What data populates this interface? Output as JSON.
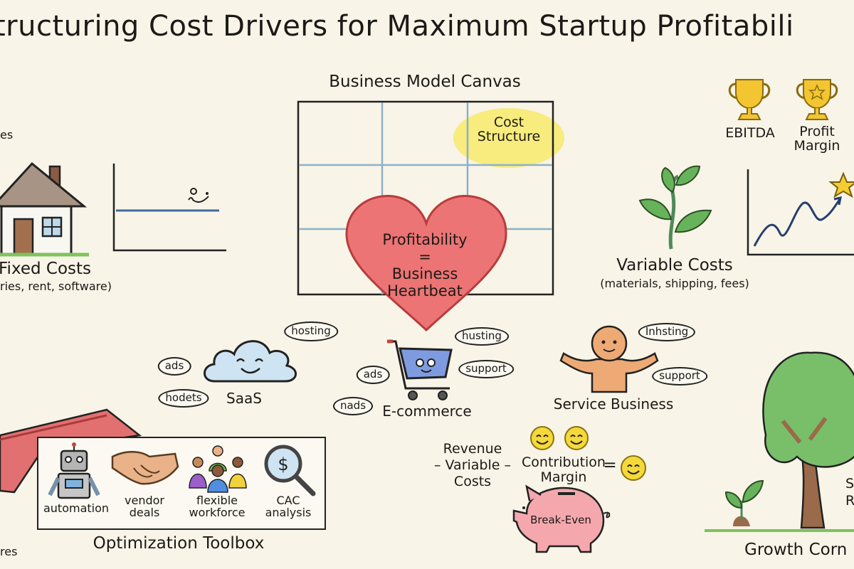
{
  "title": "tructuring Cost Drivers for Maximum Startup Profitabili",
  "fixed_costs": {
    "cut_label": "es",
    "label": "Fixed Costs",
    "sub": "ries, rent, software)"
  },
  "canvas": {
    "title": "Business Model Canvas",
    "highlight_line1": "Cost",
    "highlight_line2": "Structure",
    "highlight_color": "#f7ea6a"
  },
  "heart": {
    "line1": "Profitability",
    "line2": "=",
    "line3": "Business",
    "line4": "Heartbeat",
    "color": "#ea6a6a"
  },
  "rewards": [
    {
      "label": "EBITDA"
    },
    {
      "label_line1": "Profit",
      "label_line2": "Margin"
    }
  ],
  "variable_costs": {
    "label": "Variable Costs",
    "sub": "(materials, shipping, fees)"
  },
  "models": {
    "saas": {
      "label": "SaaS",
      "bubbles": [
        "hosting",
        "ads",
        "hodets"
      ]
    },
    "ecommerce": {
      "label": "E-commerce",
      "bubbles": [
        "husting",
        "support",
        "ads",
        "nads"
      ]
    },
    "service": {
      "label": "Service Business",
      "bubbles": [
        "Inhsting",
        "support"
      ]
    }
  },
  "formula": {
    "revenue": "Revenue",
    "minus": "–",
    "variable": "Variable",
    "costs": "Costs",
    "contribution": "Contribution",
    "margin": "Margin",
    "equals": "=",
    "piggy": "Break-Even"
  },
  "toolbox": {
    "title": "Optimization Toolbox",
    "items": [
      {
        "icon": "robot-icon",
        "line1": "automation",
        "line2": ""
      },
      {
        "icon": "handshake-icon",
        "line1": "vendor",
        "line2": "deals"
      },
      {
        "icon": "people-icon",
        "line1": "flexible",
        "line2": "workforce"
      },
      {
        "icon": "magnifier-dollar-icon",
        "line1": "CAC",
        "line2": "analysis"
      }
    ],
    "cut_label": "res"
  },
  "growth": {
    "label": "Growth Corn",
    "cut_line1": "S",
    "cut_line2": "R"
  }
}
